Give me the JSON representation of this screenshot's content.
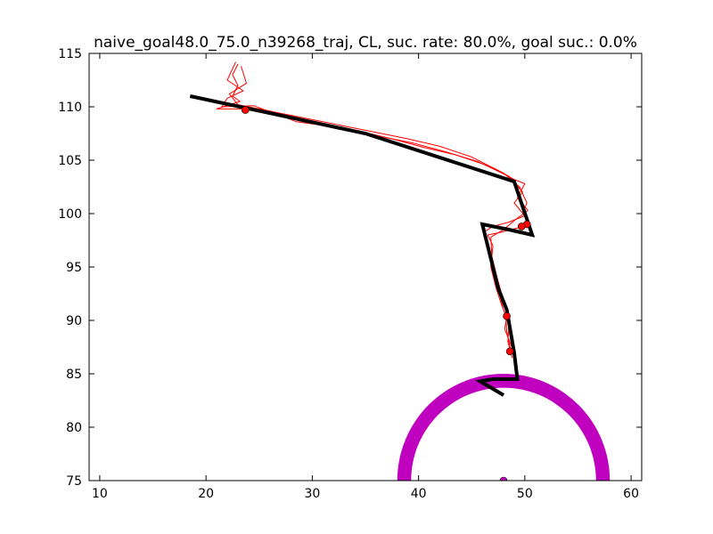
{
  "chart_data": {
    "type": "line",
    "title": "naive_goal48.0_75.0_n39268_traj, CL, suc. rate: 80.0%, goal suc.: 0.0%",
    "xlabel": "",
    "ylabel": "",
    "xlim": [
      9,
      61
    ],
    "ylim": [
      75,
      115
    ],
    "xticks": [
      10,
      20,
      30,
      40,
      50,
      60
    ],
    "yticks": [
      75,
      80,
      85,
      90,
      95,
      100,
      105,
      110,
      115
    ],
    "grid": false,
    "legend": "none",
    "colors": {
      "reference": "#000000",
      "trajectories": "#ff0000",
      "goal_region": "#bf00bf",
      "goal_point": "#bf00bf"
    },
    "series": [
      {
        "role": "reference-path",
        "points": [
          [
            18.5,
            111.0
          ],
          [
            35.0,
            107.5
          ],
          [
            49.0,
            103.0
          ],
          [
            50.7,
            98.0
          ],
          [
            48.5,
            98.5
          ],
          [
            46.0,
            99.0
          ],
          [
            47.5,
            93.0
          ],
          [
            48.3,
            91.0
          ],
          [
            49.0,
            87.0
          ],
          [
            49.3,
            84.5
          ],
          [
            47.0,
            84.5
          ],
          [
            45.8,
            84.3
          ],
          [
            48.0,
            83.0
          ]
        ]
      },
      {
        "role": "trajectory",
        "points": [
          [
            23.0,
            114.0
          ],
          [
            22.5,
            113.0
          ],
          [
            23.0,
            112.0
          ],
          [
            22.5,
            111.0
          ],
          [
            23.2,
            110.5
          ],
          [
            21.0,
            109.8
          ],
          [
            25.0,
            109.8
          ],
          [
            27.0,
            109.4
          ],
          [
            30.0,
            108.8
          ],
          [
            33.0,
            108.2
          ],
          [
            36.0,
            107.6
          ],
          [
            39.0,
            107.0
          ],
          [
            42.0,
            106.3
          ],
          [
            45.0,
            105.3
          ],
          [
            48.0,
            103.8
          ],
          [
            49.5,
            102.5
          ],
          [
            50.2,
            101.0
          ],
          [
            49.8,
            100.0
          ],
          [
            50.5,
            99.0
          ],
          [
            49.5,
            98.7
          ],
          [
            47.5,
            98.2
          ],
          [
            46.5,
            98.0
          ],
          [
            47.0,
            97.0
          ],
          [
            46.8,
            95.0
          ],
          [
            47.3,
            93.0
          ],
          [
            47.8,
            91.5
          ],
          [
            48.2,
            90.5
          ],
          [
            48.3,
            89.0
          ],
          [
            48.6,
            87.5
          ],
          [
            48.8,
            86.5
          ]
        ]
      },
      {
        "role": "trajectory",
        "points": [
          [
            22.8,
            114.2
          ],
          [
            22.0,
            112.5
          ],
          [
            23.5,
            111.5
          ],
          [
            22.0,
            110.8
          ],
          [
            21.5,
            110.0
          ],
          [
            24.5,
            110.1
          ],
          [
            27.5,
            109.0
          ],
          [
            30.5,
            108.4
          ],
          [
            33.5,
            107.9
          ],
          [
            36.5,
            107.2
          ],
          [
            39.5,
            106.6
          ],
          [
            42.5,
            105.8
          ],
          [
            45.5,
            104.9
          ],
          [
            48.5,
            103.5
          ],
          [
            49.8,
            102.0
          ],
          [
            49.0,
            101.0
          ],
          [
            50.0,
            99.8
          ],
          [
            48.5,
            99.2
          ],
          [
            47.0,
            98.8
          ],
          [
            46.2,
            98.3
          ],
          [
            46.6,
            96.5
          ],
          [
            47.0,
            94.5
          ],
          [
            47.6,
            92.5
          ],
          [
            48.0,
            91.0
          ],
          [
            48.5,
            89.5
          ],
          [
            48.4,
            88.0
          ],
          [
            48.7,
            87.0
          ]
        ]
      },
      {
        "role": "trajectory",
        "points": [
          [
            23.3,
            113.8
          ],
          [
            23.8,
            112.2
          ],
          [
            22.2,
            111.2
          ],
          [
            23.0,
            110.2
          ],
          [
            26.0,
            109.6
          ],
          [
            28.5,
            108.6
          ],
          [
            31.5,
            108.2
          ],
          [
            34.5,
            107.7
          ],
          [
            37.5,
            107.0
          ],
          [
            40.5,
            106.2
          ],
          [
            43.5,
            105.5
          ],
          [
            46.5,
            104.5
          ],
          [
            49.0,
            103.2
          ],
          [
            50.0,
            102.8
          ],
          [
            49.3,
            101.5
          ],
          [
            50.3,
            100.3
          ],
          [
            49.2,
            99.5
          ],
          [
            48.0,
            98.5
          ],
          [
            46.8,
            97.8
          ],
          [
            46.9,
            96.0
          ],
          [
            47.4,
            94.0
          ],
          [
            47.9,
            92.2
          ],
          [
            48.4,
            90.8
          ],
          [
            48.1,
            89.2
          ],
          [
            48.9,
            87.2
          ]
        ]
      }
    ],
    "markers": [
      {
        "role": "trajectory-end",
        "x": 23.7,
        "y": 109.7
      },
      {
        "role": "trajectory-end",
        "x": 50.2,
        "y": 99.0
      },
      {
        "role": "trajectory-end",
        "x": 49.7,
        "y": 98.8
      },
      {
        "role": "trajectory-end",
        "x": 48.3,
        "y": 90.4
      },
      {
        "role": "trajectory-end",
        "x": 48.6,
        "y": 87.1
      },
      {
        "role": "goal",
        "x": 48.0,
        "y": 75.0
      }
    ],
    "goal_region": {
      "center": [
        48.0,
        75.0
      ],
      "inner_radius": 8.7,
      "outer_radius": 10.0
    }
  }
}
